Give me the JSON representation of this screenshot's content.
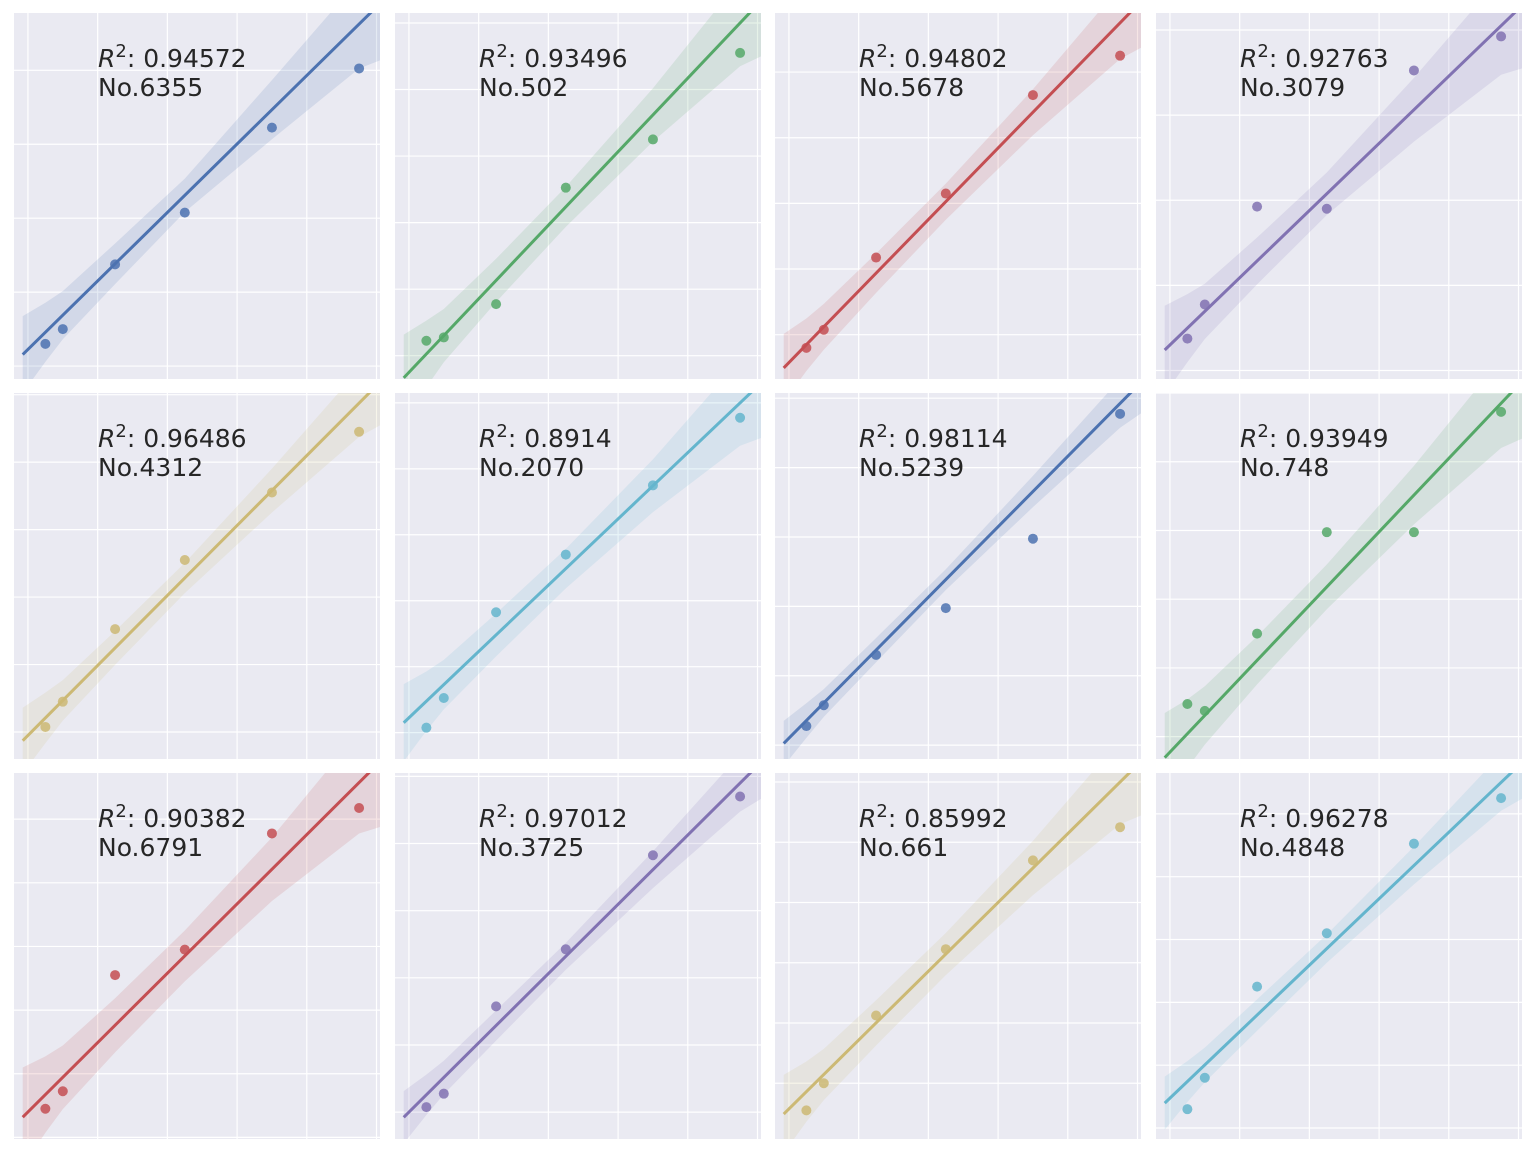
{
  "chart_data": [
    {
      "type": "scatter",
      "label": "No.6355",
      "r2": "0.94572",
      "color": "#4c72b0",
      "x": [
        1,
        2,
        5,
        9,
        14,
        19
      ],
      "y": [
        1.2,
        2.0,
        5.5,
        8.3,
        12.9,
        16.1
      ],
      "fit": [
        0.9,
        18.5
      ],
      "ci": [
        1.6,
        1.3,
        1.1,
        0.9,
        1.6,
        2.4
      ]
    },
    {
      "type": "scatter",
      "label": "No.502",
      "r2": "0.93496",
      "color": "#55a868",
      "x": [
        1,
        2,
        5,
        9,
        14,
        19
      ],
      "y": [
        0.9,
        1.1,
        3.1,
        10.1,
        13.0,
        18.2
      ],
      "fit": [
        -1.0,
        20.0
      ],
      "ci": [
        2.0,
        1.6,
        1.3,
        1.2,
        1.6,
        2.6
      ]
    },
    {
      "type": "scatter",
      "label": "No.5678",
      "r2": "0.94802",
      "color": "#c44e52",
      "x": [
        1,
        2,
        5,
        9,
        14,
        19
      ],
      "y": [
        3.2,
        4.3,
        8.7,
        12.6,
        18.6,
        21.0
      ],
      "fit": [
        2.3,
        23.0
      ],
      "ci": [
        1.6,
        1.4,
        1.2,
        1.1,
        1.4,
        2.2
      ]
    },
    {
      "type": "scatter",
      "label": "No.3079",
      "r2": "0.92763",
      "color": "#8172b2",
      "x": [
        1,
        2,
        5,
        9,
        14,
        19
      ],
      "y": [
        1.5,
        3.1,
        7.7,
        7.6,
        14.1,
        15.7
      ],
      "fit": [
        1.2,
        16.2
      ],
      "ci": [
        1.6,
        1.3,
        1.1,
        1.0,
        1.5,
        2.3
      ]
    },
    {
      "type": "scatter",
      "label": "No.4312",
      "r2": "0.96486",
      "color": "#ccb974",
      "x": [
        1,
        2,
        5,
        9,
        14,
        19
      ],
      "y": [
        0.3,
        1.8,
        6.1,
        10.2,
        14.2,
        17.8
      ],
      "fit": [
        -0.2,
        19.5
      ],
      "ci": [
        1.5,
        1.2,
        1.0,
        0.9,
        1.3,
        2.0
      ]
    },
    {
      "type": "scatter",
      "label": "No.2070",
      "r2": "0.8914",
      "color": "#64b5cd",
      "x": [
        1,
        2,
        5,
        9,
        14,
        19
      ],
      "y": [
        0.3,
        2.1,
        7.3,
        10.8,
        15.0,
        19.1
      ],
      "fit": [
        0.9,
        20.0
      ],
      "ci": [
        1.8,
        1.5,
        1.3,
        1.2,
        1.6,
        2.6
      ]
    },
    {
      "type": "scatter",
      "label": "No.5239",
      "r2": "0.98114",
      "color": "#4c72b0",
      "x": [
        1,
        2,
        5,
        9,
        14,
        19
      ],
      "y": [
        1.1,
        2.3,
        5.2,
        7.9,
        11.9,
        19.1
      ],
      "fit": [
        0.4,
        19.7
      ],
      "ci": [
        1.0,
        0.8,
        0.7,
        0.6,
        0.9,
        1.4
      ]
    },
    {
      "type": "scatter",
      "label": "No.748",
      "r2": "0.93949",
      "color": "#55a868",
      "x": [
        1,
        2,
        5,
        9,
        14,
        19
      ],
      "y": [
        1.9,
        1.5,
        6.0,
        11.9,
        11.9,
        18.9
      ],
      "fit": [
        -0.9,
        19.4
      ],
      "ci": [
        2.0,
        1.7,
        1.4,
        1.3,
        1.7,
        2.6
      ]
    },
    {
      "type": "scatter",
      "label": "No.6791",
      "r2": "0.90382",
      "color": "#c44e52",
      "x": [
        1,
        2,
        5,
        9,
        14,
        19
      ],
      "y": [
        1.8,
        2.9,
        10.2,
        11.8,
        19.1,
        20.7
      ],
      "fit": [
        1.6,
        22.3
      ],
      "ci": [
        2.4,
        2.0,
        1.7,
        1.6,
        2.0,
        3.2
      ]
    },
    {
      "type": "scatter",
      "label": "No.3725",
      "r2": "0.97012",
      "color": "#8172b2",
      "x": [
        1,
        2,
        5,
        9,
        14,
        19
      ],
      "y": [
        0.3,
        1.1,
        6.3,
        9.7,
        15.3,
        18.8
      ],
      "fit": [
        0.0,
        19.6
      ],
      "ci": [
        1.2,
        1.0,
        0.9,
        0.8,
        1.1,
        1.7
      ]
    },
    {
      "type": "scatter",
      "label": "No.661",
      "r2": "0.85992",
      "color": "#ccb974",
      "x": [
        1,
        2,
        5,
        9,
        14,
        19
      ],
      "y": [
        2.2,
        4.0,
        8.5,
        12.9,
        18.8,
        21.0
      ],
      "fit": [
        2.3,
        24.0
      ],
      "ci": [
        2.0,
        1.7,
        1.5,
        1.4,
        1.8,
        2.8
      ]
    },
    {
      "type": "scatter",
      "label": "No.4848",
      "r2": "0.96278",
      "color": "#64b5cd",
      "x": [
        1,
        2,
        5,
        9,
        14,
        19
      ],
      "y": [
        1.2,
        3.2,
        9.0,
        12.4,
        18.1,
        21.0
      ],
      "fit": [
        1.9,
        22.0
      ],
      "ci": [
        1.3,
        1.1,
        1.0,
        0.9,
        1.2,
        1.8
      ]
    }
  ]
}
